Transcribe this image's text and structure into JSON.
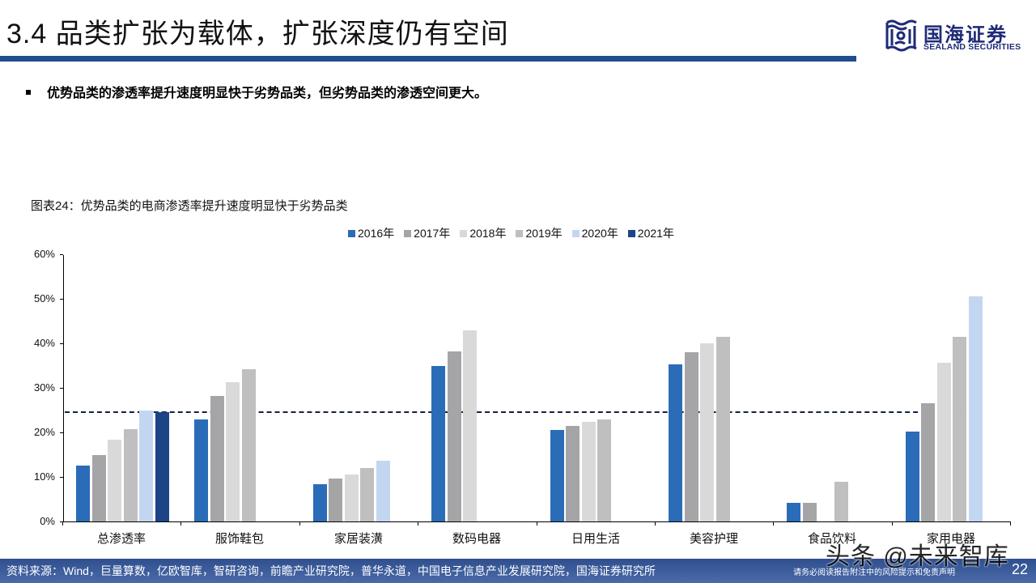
{
  "header": {
    "title": "3.4 品类扩张为载体，扩张深度仍有空间",
    "logo_cn": "国海证券",
    "logo_en": "SEALAND SECURITIES"
  },
  "bullet": {
    "text": "优势品类的渗透率提升速度明显快于劣势品类，但劣势品类的渗透空间更大。"
  },
  "chart_caption": "图表24：优势品类的电商渗透率提升速度明显快于劣势品类",
  "colors": {
    "2016": "#2a6cb8",
    "2017": "#a5a5a8",
    "2018": "#d9d9d9",
    "2019": "#bfbfbf",
    "2020": "#c3d6f1",
    "2021": "#1c4487",
    "avg_line": "#16204a",
    "title_bar": "#1f4e8c"
  },
  "legend": [
    {
      "label": "2016年",
      "key": "2016"
    },
    {
      "label": "2017年",
      "key": "2017"
    },
    {
      "label": "2018年",
      "key": "2018"
    },
    {
      "label": "2019年",
      "key": "2019"
    },
    {
      "label": "2020年",
      "key": "2020"
    },
    {
      "label": "2021年",
      "key": "2021"
    }
  ],
  "y_ticks": [
    "0%",
    "10%",
    "20%",
    "30%",
    "40%",
    "50%",
    "60%"
  ],
  "chart_data": {
    "type": "bar",
    "title": "图表24：优势品类的电商渗透率提升速度明显快于劣势品类",
    "xlabel": "",
    "ylabel": "",
    "ylim": [
      0,
      60
    ],
    "y_format": "percent",
    "grid": false,
    "legend_position": "top",
    "categories": [
      "总渗透率",
      "服饰鞋包",
      "家居装潢",
      "数码电器",
      "日用生活",
      "美容护理",
      "食品饮料",
      "家用电器"
    ],
    "series": [
      {
        "name": "2016年",
        "values": [
          12.5,
          23.0,
          8.4,
          35.0,
          20.6,
          35.3,
          4.2,
          20.2
        ]
      },
      {
        "name": "2017年",
        "values": [
          14.9,
          28.1,
          9.6,
          38.1,
          21.5,
          38.0,
          4.2,
          26.6
        ]
      },
      {
        "name": "2018年",
        "values": [
          18.4,
          31.2,
          10.5,
          43.0,
          22.3,
          40.0,
          null,
          35.6
        ]
      },
      {
        "name": "2019年",
        "values": [
          20.8,
          34.1,
          12.0,
          null,
          22.9,
          41.4,
          9.0,
          41.4
        ]
      },
      {
        "name": "2020年",
        "values": [
          24.9,
          null,
          13.6,
          null,
          null,
          null,
          null,
          50.5
        ]
      },
      {
        "name": "2021年",
        "values": [
          24.5,
          null,
          null,
          null,
          null,
          null,
          null,
          null
        ]
      }
    ],
    "annotations": [
      {
        "type": "hline",
        "style": "dashed",
        "value": 24.6,
        "note": "总渗透率参考线"
      }
    ]
  },
  "footer": {
    "source": "资料来源：Wind，巨量算数，亿欧智库，智研咨询，前瞻产业研究院，普华永道，中国电子信息产业发展研究院，国海证券研究所",
    "disclaimer": "请务必阅读报告附注中的风险提示和免责声明",
    "page": "22"
  },
  "watermark": "头条 @未来智库"
}
